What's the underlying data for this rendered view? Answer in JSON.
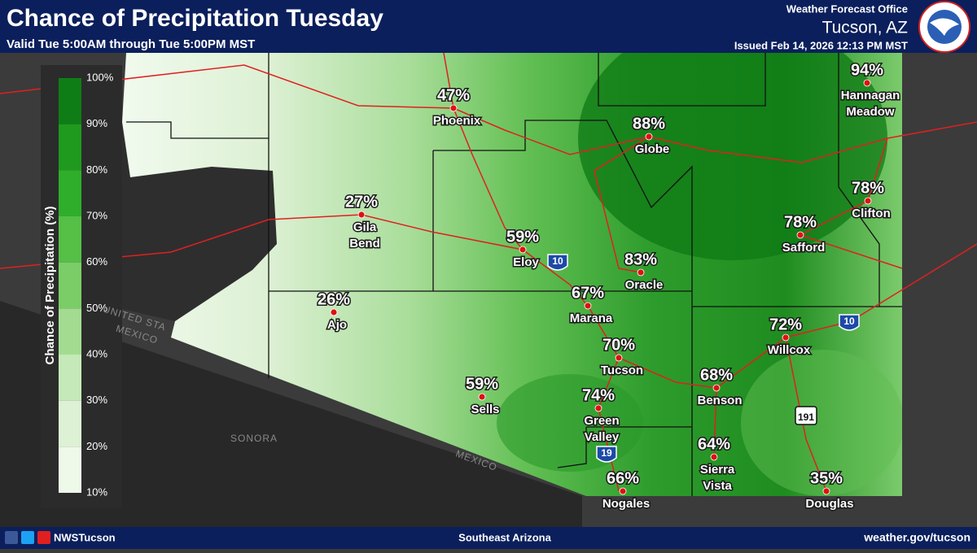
{
  "header": {
    "title": "Chance of Precipitation Tuesday",
    "subtitle": "Valid Tue 5:00AM through Tue 5:00PM MST",
    "office_line": "Weather Forecast Office",
    "office": "Tucson, AZ",
    "issued": "Issued Feb 14, 2026 12:13 PM MST"
  },
  "legend": {
    "title": "Chance of Precipitation (%)",
    "labels": [
      "100%",
      "90%",
      "80%",
      "70%",
      "60%",
      "50%",
      "40%",
      "30%",
      "20%",
      "10%"
    ],
    "colors": [
      "#0f7d16",
      "#1f9a1f",
      "#2fae2b",
      "#55bf46",
      "#7bcd68",
      "#a3dc91",
      "#c5e9b8",
      "#ddf2d5",
      "#eef9ea"
    ]
  },
  "cities": [
    {
      "value": "94%",
      "name": [
        "Hannagan",
        "Meadow"
      ]
    },
    {
      "value": "47%",
      "name": [
        "Phoenix"
      ]
    },
    {
      "value": "88%",
      "name": [
        "Globe"
      ]
    },
    {
      "value": "78%",
      "name": [
        "Clifton"
      ]
    },
    {
      "value": "27%",
      "name": [
        "Gila",
        "Bend"
      ]
    },
    {
      "value": "78%",
      "name": [
        "Safford"
      ]
    },
    {
      "value": "59%",
      "name": [
        "Eloy"
      ]
    },
    {
      "value": "83%",
      "name": [
        "Oracle"
      ]
    },
    {
      "value": "67%",
      "name": [
        "Marana"
      ]
    },
    {
      "value": "26%",
      "name": [
        "Ajo"
      ]
    },
    {
      "value": "72%",
      "name": [
        "Willcox"
      ]
    },
    {
      "value": "70%",
      "name": [
        "Tucson"
      ]
    },
    {
      "value": "68%",
      "name": [
        "Benson"
      ]
    },
    {
      "value": "59%",
      "name": [
        "Sells"
      ]
    },
    {
      "value": "74%",
      "name": [
        "Green",
        "Valley"
      ]
    },
    {
      "value": "64%",
      "name": [
        "Sierra",
        "Vista"
      ]
    },
    {
      "value": "66%",
      "name": [
        "Nogales"
      ]
    },
    {
      "value": "35%",
      "name": [
        "Douglas"
      ]
    }
  ],
  "highways": [
    "10",
    "10",
    "19",
    "191"
  ],
  "map_labels": [
    "UNITED STA",
    "MEXICO",
    "SONORA",
    "MEXICO"
  ],
  "footer": {
    "handle": "NWSTucson",
    "region": "Southeast Arizona",
    "url": "weather.gov/tucson"
  }
}
